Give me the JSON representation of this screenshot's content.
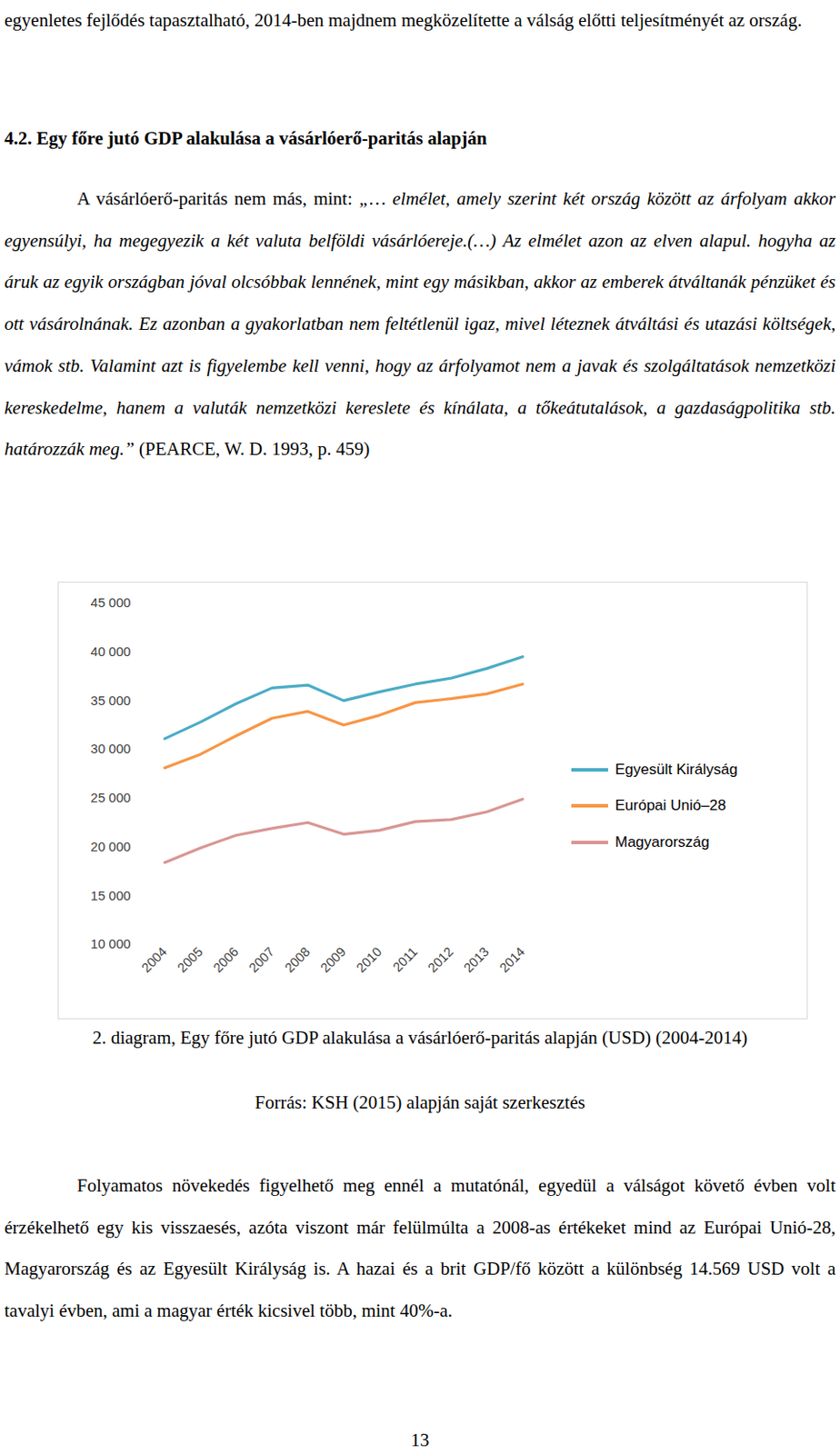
{
  "document": {
    "intro_paragraph": "egyenletes fejlődés tapasztalható, 2014-ben majdnem megközelítette a válság előtti teljesítményét az ország.",
    "heading": "4.2. Egy főre jutó GDP alakulása a vásárlóerő-paritás alapján",
    "quote": {
      "lead": "A vásárlóerő-paritás nem más, mint: ",
      "text": "„… elmélet, amely szerint két ország között az árfolyam akkor egyensúlyi, ha megegyezik a két valuta belföldi vásárlóereje.(…) Az elmélet azon az elven alapul. hogyha az áruk az egyik országban jóval olcsóbbak lennének, mint egy másikban, akkor az emberek átváltanák pénzüket és ott vásárolnának. Ez azonban a gyakorlatban nem feltétlenül igaz, mivel léteznek átváltási és utazási költségek, vámok stb. Valamint azt is figyelembe kell venni, hogy az árfolyamot nem a javak és szolgáltatások nemzetközi kereskedelme, hanem a valuták nemzetközi kereslete és kínálata, a tőkeátutalások, a gazdaságpolitika stb. határozzák meg.”",
      "citation": " (PEARCE, W. D. 1993, p. 459)"
    },
    "caption": "2. diagram, Egy főre jutó GDP alakulása a vásárlóerő-paritás alapján (USD) (2004-2014)",
    "source": "Forrás: KSH (2015) alapján saját szerkesztés",
    "closing_paragraph": "Folyamatos növekedés figyelhető meg ennél a mutatónál, egyedül a válságot követő évben volt érzékelhető egy kis visszaesés, azóta viszont már felülmúlta a 2008-as értékeket mind az Európai Unió-28, Magyarország és az Egyesült Királyság is. A hazai és a brit GDP/fő között a különbség 14.569 USD volt a tavalyi évben, ami a magyar érték kicsivel több, mint 40%-a.",
    "page_number": "13"
  },
  "chart_data": {
    "type": "line",
    "categories": [
      "2004",
      "2005",
      "2006",
      "2007",
      "2008",
      "2009",
      "2010",
      "2011",
      "2012",
      "2013",
      "2014"
    ],
    "series": [
      {
        "name": "Egyesült Királyság",
        "color": "#4bacc6",
        "values": [
          31100,
          32800,
          34700,
          36300,
          36600,
          35000,
          35900,
          36700,
          37300,
          38300,
          39500
        ]
      },
      {
        "name": "Európai Unió–28",
        "color": "#f79646",
        "values": [
          28100,
          29500,
          31400,
          33200,
          33900,
          32500,
          33500,
          34800,
          35200,
          35700,
          36700
        ]
      },
      {
        "name": "Magyarország",
        "color": "#d99694",
        "values": [
          18400,
          19900,
          21200,
          21900,
          22500,
          21300,
          21700,
          22600,
          22800,
          23600,
          24900
        ]
      }
    ],
    "ylim": [
      10000,
      45000
    ],
    "yticks": [
      {
        "value": 10000,
        "label": "10 000"
      },
      {
        "value": 15000,
        "label": "15 000"
      },
      {
        "value": 20000,
        "label": "20 000"
      },
      {
        "value": 25000,
        "label": "25 000"
      },
      {
        "value": 30000,
        "label": "30 000"
      },
      {
        "value": 35000,
        "label": "35 000"
      },
      {
        "value": 40000,
        "label": "40 000"
      },
      {
        "value": 45000,
        "label": "45 000"
      }
    ],
    "grid": false,
    "legend": "right"
  }
}
